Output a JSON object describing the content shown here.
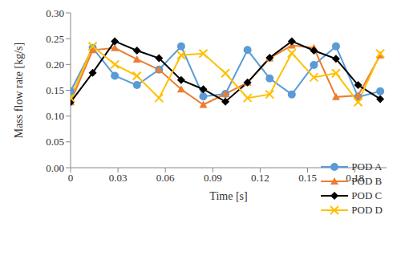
{
  "chart_data": {
    "type": "line",
    "x_label": "Time [s]",
    "y_label": "Mass flow rate [kg/s]",
    "x": [
      0,
      0.014,
      0.028,
      0.042,
      0.056,
      0.07,
      0.084,
      0.098,
      0.112,
      0.126,
      0.14,
      0.154,
      0.168,
      0.182,
      0.196
    ],
    "series": [
      {
        "name": "POD A",
        "color": "#5b9bd5",
        "marker": "circle",
        "values": [
          0.148,
          0.232,
          0.178,
          0.16,
          0.19,
          0.235,
          0.138,
          0.143,
          0.228,
          0.173,
          0.142,
          0.199,
          0.235,
          0.137,
          0.148
        ]
      },
      {
        "name": "POD B",
        "color": "#ed7d31",
        "marker": "triangle",
        "values": [
          0.127,
          0.228,
          0.232,
          0.21,
          0.19,
          0.152,
          0.122,
          0.143,
          0.165,
          0.212,
          0.237,
          0.232,
          0.137,
          0.14,
          0.218
        ]
      },
      {
        "name": "POD C",
        "color": "#000000",
        "marker": "diamond",
        "values": [
          0.127,
          0.184,
          0.245,
          0.227,
          0.212,
          0.17,
          0.152,
          0.128,
          0.165,
          0.213,
          0.245,
          0.227,
          0.211,
          0.16,
          0.133
        ]
      },
      {
        "name": "POD D",
        "color": "#ffc000",
        "marker": "x",
        "values": [
          0.135,
          0.235,
          0.2,
          0.178,
          0.135,
          0.218,
          0.221,
          0.183,
          0.135,
          0.142,
          0.222,
          0.175,
          0.183,
          0.127,
          0.221
        ]
      }
    ],
    "xlim": [
      0,
      0.2
    ],
    "xticks": [
      0,
      0.03,
      0.06,
      0.09,
      0.12,
      0.15,
      0.18
    ],
    "ylim": [
      0,
      0.3
    ],
    "yticks": [
      {
        "value": 0,
        "label": "0.00"
      },
      {
        "value": 0.05,
        "label": "0.05"
      },
      {
        "value": 0.1,
        "label": "0.10"
      },
      {
        "value": 0.15,
        "label": "0.15"
      },
      {
        "value": 0.2,
        "label": "0.20"
      },
      {
        "value": 0.25,
        "label": "0.25"
      },
      {
        "value": 0.3,
        "label": "0.30"
      }
    ],
    "grid": false,
    "legend": "lower right"
  }
}
